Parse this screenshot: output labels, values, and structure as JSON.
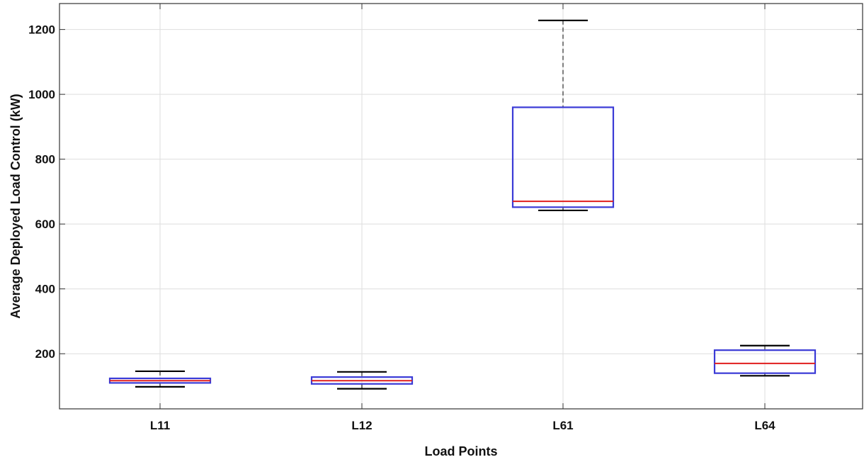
{
  "chart_data": {
    "type": "box",
    "xlabel": "Load Points",
    "ylabel": "Average Deployed Load Control (kW)",
    "categories": [
      "L11",
      "L12",
      "L61",
      "L64"
    ],
    "boxes": [
      {
        "category": "L11",
        "min": 98,
        "q1": 110,
        "median": 117,
        "q3": 124,
        "max": 146
      },
      {
        "category": "L12",
        "min": 92,
        "q1": 107,
        "median": 117,
        "q3": 128,
        "max": 144
      },
      {
        "category": "L61",
        "min": 642,
        "q1": 652,
        "median": 670,
        "q3": 960,
        "max": 1228
      },
      {
        "category": "L64",
        "min": 132,
        "q1": 140,
        "median": 170,
        "q3": 211,
        "max": 225
      }
    ],
    "ylim": [
      30,
      1280
    ],
    "yticks": [
      200,
      400,
      600,
      800,
      1000,
      1200
    ],
    "grid": true,
    "colors": {
      "box": "#3a3ad6",
      "median": "#e01e1e",
      "whisker": "#000000",
      "lower_whisker_line": "#444444"
    }
  }
}
